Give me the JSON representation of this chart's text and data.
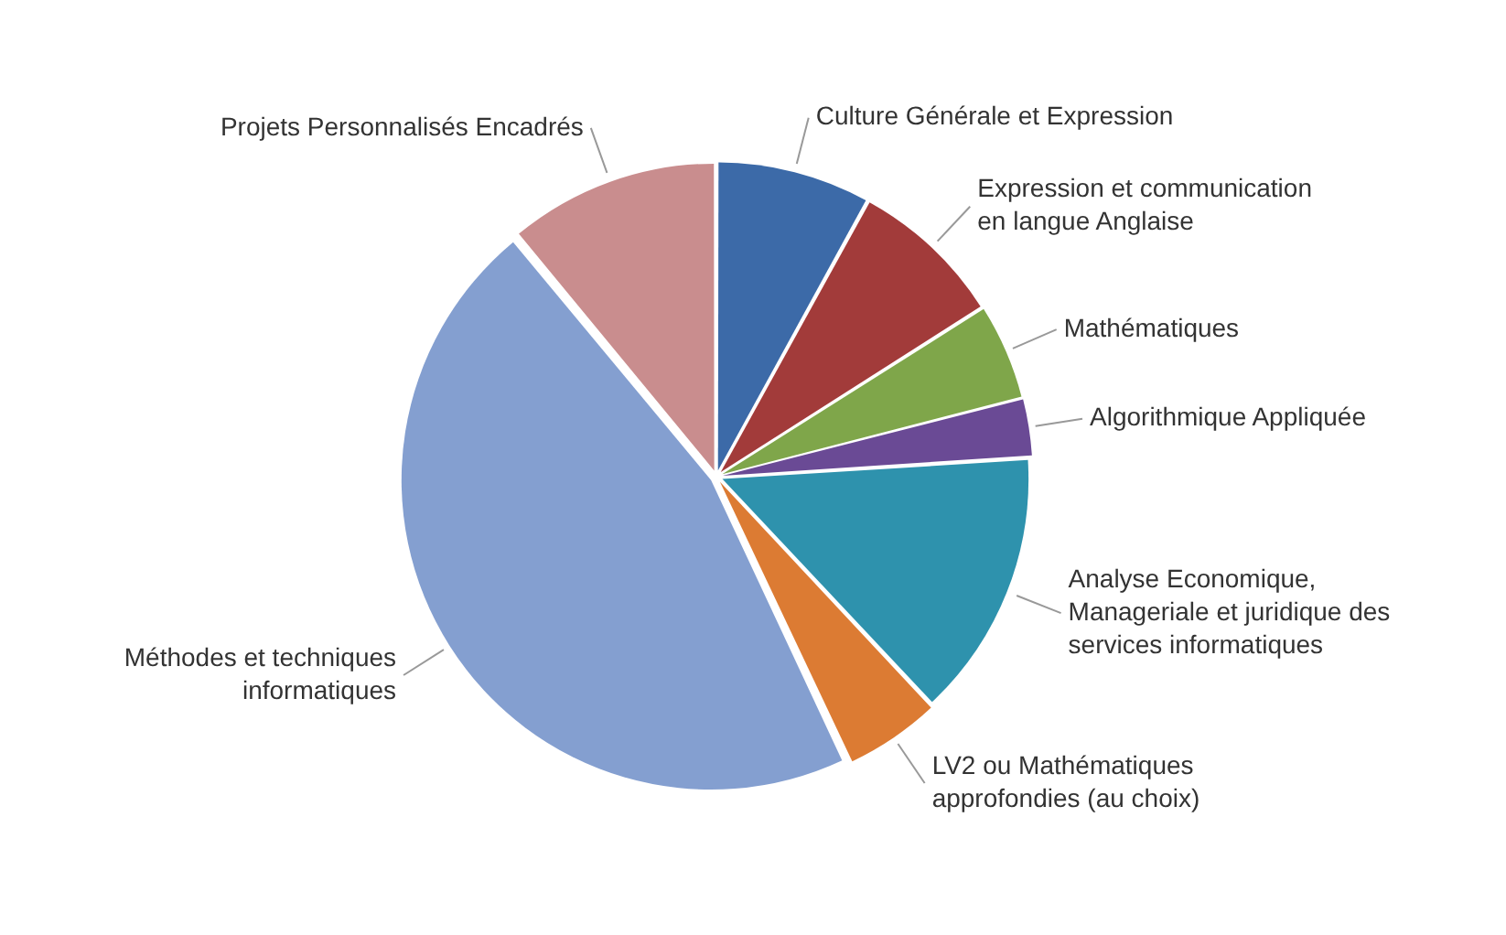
{
  "chart_data": {
    "type": "pie",
    "categories": [
      "Culture Générale et Expression",
      "Expression et communication en langue Anglaise",
      "Mathématiques",
      "Algorithmique Appliquée",
      "Analyse Economique, Manageriale et juridique des services informatiques",
      "LV2 ou Mathématiques approfondies (au choix)",
      "Méthodes et techniques informatiques",
      "Projets Personnalisés Encadrés"
    ],
    "values": [
      8,
      8,
      5,
      3,
      14,
      5,
      46,
      11
    ],
    "colors": [
      "#3c6aa8",
      "#a23b3a",
      "#7fa64a",
      "#6a4a95",
      "#2e92ad",
      "#dc7b33",
      "#849fd0",
      "#c98d8e"
    ],
    "legend": false
  }
}
